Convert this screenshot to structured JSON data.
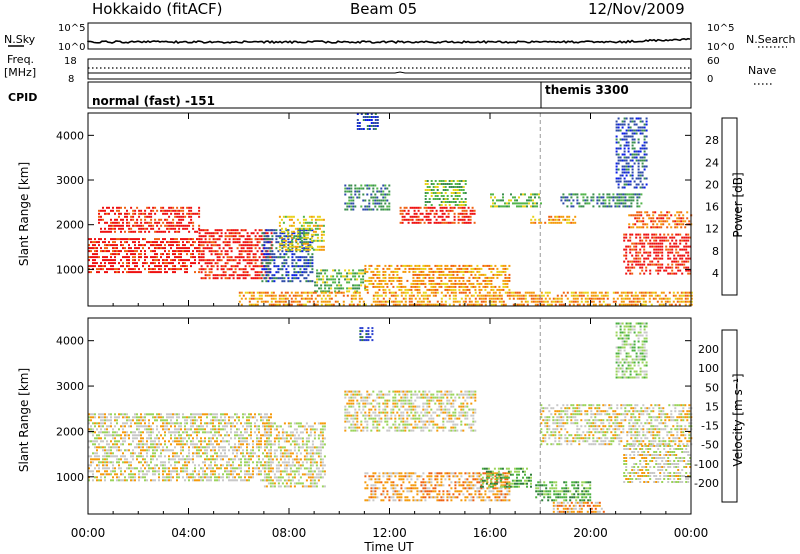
{
  "header": {
    "station": "Hokkaido (fitACF)",
    "beam": "Beam 05",
    "date": "12/Nov/2009"
  },
  "summary_panels": {
    "nsky_label": "N.Sky",
    "nsearch_label": "N.Search",
    "noise_ticks": [
      "10^5",
      "10^0"
    ],
    "freq_label": "Freq.",
    "freq_unit": "[MHz]",
    "freq_ticks": [
      "18",
      "8"
    ],
    "nave_label": "Nave",
    "nave_ticks": [
      "60",
      "0"
    ],
    "cpid_label": "CPID",
    "cpid_modes": [
      "normal (fast) -151",
      "themis 3300"
    ]
  },
  "chart_data": [
    {
      "type": "heatmap",
      "name": "power",
      "ylabel": "Slant Range [km]",
      "xlabel": "Time UT",
      "x_ticks": [
        "00:00",
        "04:00",
        "08:00",
        "12:00",
        "16:00",
        "20:00",
        "00:00"
      ],
      "x_range_hours": [
        0,
        24
      ],
      "y_ticks": [
        1000,
        2000,
        3000,
        4000
      ],
      "ylim": [
        180,
        4500
      ],
      "colorbar": {
        "label": "Power [dB]",
        "ticks": [
          4,
          8,
          12,
          16,
          20,
          24,
          28
        ],
        "colors": [
          "#0a1ee6",
          "#2d4aa8",
          "#3a8e4e",
          "#52b54a",
          "#e8d21a",
          "#f59a0a",
          "#f06010",
          "#ee1010"
        ]
      },
      "cpid_boundary_hour": 18.0,
      "echo_regions": [
        {
          "t0": 0.0,
          "t1": 4.4,
          "r0": 900,
          "r1": 1700,
          "level": 7
        },
        {
          "t0": 0.4,
          "t1": 4.4,
          "r0": 1800,
          "r1": 2400,
          "level": 7
        },
        {
          "t0": 4.4,
          "t1": 7.3,
          "r0": 800,
          "r1": 1900,
          "level": 7
        },
        {
          "t0": 6.9,
          "t1": 8.9,
          "r0": 700,
          "r1": 1900,
          "level": 1
        },
        {
          "t0": 7.6,
          "t1": 9.4,
          "r0": 1400,
          "r1": 2200,
          "level": 4
        },
        {
          "t0": 9.0,
          "t1": 11.0,
          "r0": 500,
          "r1": 1000,
          "level": 3
        },
        {
          "t0": 11.0,
          "t1": 16.8,
          "r0": 500,
          "r1": 1100,
          "level": 5
        },
        {
          "t0": 10.2,
          "t1": 12.0,
          "r0": 2300,
          "r1": 2900,
          "level": 2
        },
        {
          "t0": 12.4,
          "t1": 15.4,
          "r0": 2000,
          "r1": 2400,
          "level": 7
        },
        {
          "t0": 13.4,
          "t1": 15.0,
          "r0": 2400,
          "r1": 3000,
          "level": 3
        },
        {
          "t0": 16.0,
          "t1": 18.0,
          "r0": 2400,
          "r1": 2700,
          "level": 3
        },
        {
          "t0": 17.6,
          "t1": 19.4,
          "r0": 2000,
          "r1": 2200,
          "level": 5
        },
        {
          "t0": 18.8,
          "t1": 22.0,
          "r0": 2400,
          "r1": 2700,
          "level": 2
        },
        {
          "t0": 21.3,
          "t1": 24.0,
          "r0": 900,
          "r1": 1800,
          "level": 7
        },
        {
          "t0": 21.5,
          "t1": 24.0,
          "r0": 1900,
          "r1": 2300,
          "level": 6
        },
        {
          "t0": 21.0,
          "t1": 22.2,
          "r0": 2800,
          "r1": 4400,
          "level": 1
        },
        {
          "t0": 6.0,
          "t1": 24.0,
          "r0": 200,
          "r1": 500,
          "level": 5
        },
        {
          "t0": 10.7,
          "t1": 11.5,
          "r0": 4100,
          "r1": 4500,
          "level": 1
        }
      ]
    },
    {
      "type": "heatmap",
      "name": "velocity",
      "ylabel": "Slant Range [km]",
      "xlabel": "Time UT",
      "x_ticks": [
        "00:00",
        "04:00",
        "08:00",
        "12:00",
        "16:00",
        "20:00",
        "00:00"
      ],
      "x_range_hours": [
        0,
        24
      ],
      "y_ticks": [
        1000,
        2000,
        3000,
        4000
      ],
      "ylim": [
        180,
        4500
      ],
      "colorbar": {
        "label": "Velocity [m s⁻¹]",
        "ticks": [
          200,
          100,
          50,
          15,
          -15,
          -50,
          -100,
          -200
        ],
        "colors": [
          "#2a3fcf",
          "#2e7d3a",
          "#4ab040",
          "#9bd45a",
          "#c8c8c8",
          "#f59a0a",
          "#f06010",
          "#e81a1a",
          "#e81010"
        ]
      },
      "cpid_boundary_hour": 18.0,
      "echo_regions": [
        {
          "t0": 0.0,
          "t1": 7.3,
          "r0": 900,
          "r1": 2400,
          "level": 4
        },
        {
          "t0": 7.0,
          "t1": 9.4,
          "r0": 800,
          "r1": 2200,
          "level": 4
        },
        {
          "t0": 10.2,
          "t1": 15.4,
          "r0": 2000,
          "r1": 2900,
          "level": 4
        },
        {
          "t0": 11.0,
          "t1": 16.8,
          "r0": 500,
          "r1": 1100,
          "level": 5
        },
        {
          "t0": 15.6,
          "t1": 17.6,
          "r0": 800,
          "r1": 1200,
          "level": 2
        },
        {
          "t0": 17.8,
          "t1": 20.0,
          "r0": 500,
          "r1": 900,
          "level": 2
        },
        {
          "t0": 18.0,
          "t1": 24.0,
          "r0": 1700,
          "r1": 2600,
          "level": 4
        },
        {
          "t0": 21.3,
          "t1": 24.0,
          "r0": 900,
          "r1": 1700,
          "level": 4
        },
        {
          "t0": 18.5,
          "t1": 20.5,
          "r0": 200,
          "r1": 450,
          "level": 5
        },
        {
          "t0": 10.8,
          "t1": 11.3,
          "r0": 4000,
          "r1": 4300,
          "level": 0
        },
        {
          "t0": 21.0,
          "t1": 22.2,
          "r0": 3200,
          "r1": 4400,
          "level": 3
        }
      ]
    }
  ]
}
